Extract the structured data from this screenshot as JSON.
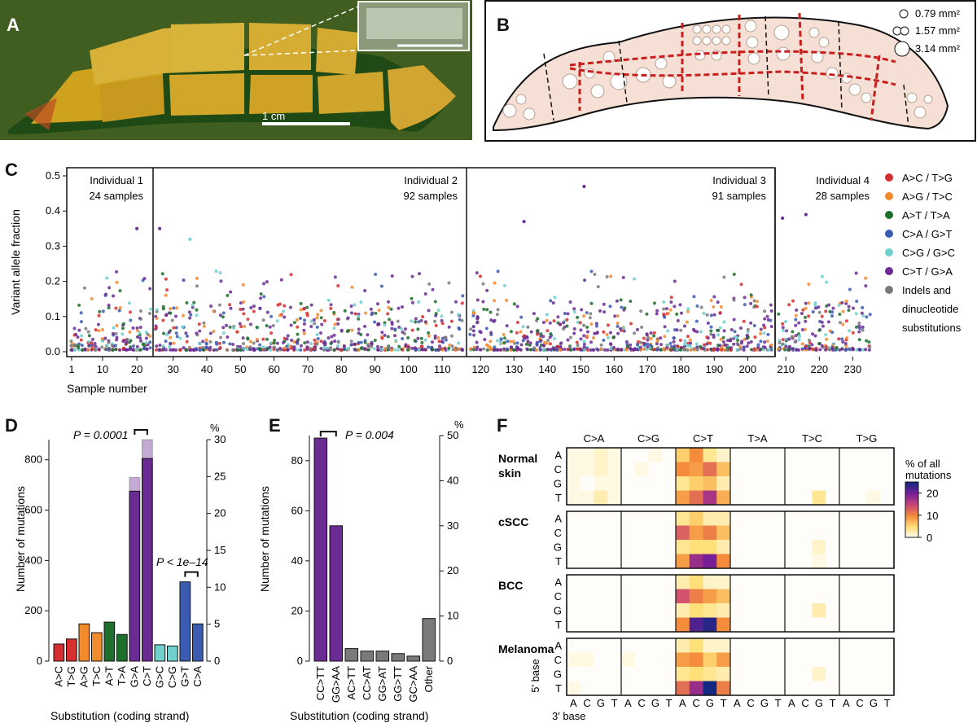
{
  "panels": {
    "A": {
      "letter": "A",
      "scale_label": "1 cm"
    },
    "B": {
      "letter": "B",
      "legend": [
        "0.79 mm²",
        "1.57 mm²",
        "3.14 mm²"
      ]
    },
    "C": {
      "letter": "C",
      "individuals": [
        {
          "name": "Individual 1",
          "samples": "24 samples",
          "start": 1,
          "end": 24
        },
        {
          "name": "Individual 2",
          "samples": "92 samples",
          "start": 25,
          "end": 116
        },
        {
          "name": "Individual 3",
          "samples": "91 samples",
          "start": 117,
          "end": 207
        },
        {
          "name": "Individual 4",
          "samples": "28 samples",
          "start": 208,
          "end": 235
        }
      ],
      "legend": [
        {
          "label": "A>C / T>G",
          "color": "#d62f2f"
        },
        {
          "label": "A>G / T>C",
          "color": "#f28a2e"
        },
        {
          "label": "A>T / T>A",
          "color": "#1e6e2e"
        },
        {
          "label": "C>A / G>T",
          "color": "#3a5bb0"
        },
        {
          "label": "C>G / G>C",
          "color": "#6fd0cc"
        },
        {
          "label": "C>T / G>A",
          "color": "#6a2b92"
        },
        {
          "label": "Indels and",
          "color": "#7a7a7a"
        },
        {
          "label": "dinucleotide",
          "color": ""
        },
        {
          "label": "substitutions",
          "color": ""
        }
      ]
    },
    "D": {
      "letter": "D",
      "p1": "P = 0.0001",
      "p2": "P < 1e–14"
    },
    "E": {
      "letter": "E",
      "p1": "P = 0.004"
    },
    "F": {
      "letter": "F",
      "columns": [
        "C>A",
        "C>G",
        "C>T",
        "T>A",
        "T>C",
        "T>G"
      ],
      "rows": [
        "Normal skin",
        "cSCC",
        "BCC",
        "Melanoma"
      ],
      "five_prime": [
        "A",
        "C",
        "G",
        "T"
      ],
      "three_prime": [
        "A",
        "C",
        "G",
        "T"
      ],
      "five_prime_label": "5' base",
      "three_prime_label": "3' base",
      "colorbar_title": [
        "% of all",
        "mutations"
      ],
      "colorbar_ticks": [
        "20",
        "10",
        "0"
      ]
    }
  },
  "chart_data": [
    {
      "type": "scatter",
      "panel": "C",
      "xlabel": "Sample number",
      "ylabel": "Variant allele fraction",
      "ylim": [
        0,
        0.5
      ],
      "yticks": [
        "0.0",
        "0.1",
        "0.2",
        "0.3",
        "0.4",
        "0.5"
      ],
      "xticks": [
        1,
        10,
        20,
        30,
        40,
        50,
        60,
        70,
        80,
        90,
        100,
        110,
        120,
        130,
        140,
        150,
        160,
        170,
        180,
        190,
        200,
        210,
        220,
        230
      ],
      "notable_points": [
        {
          "sample": 20,
          "vaf": 0.35,
          "class": "C>T / G>A"
        },
        {
          "sample": 26,
          "vaf": 0.35,
          "class": "C>T / G>A"
        },
        {
          "sample": 35,
          "vaf": 0.32,
          "class": "C>G / G>C"
        },
        {
          "sample": 133,
          "vaf": 0.37,
          "class": "C>T / G>A"
        },
        {
          "sample": 151,
          "vaf": 0.47,
          "class": "C>T / G>A"
        },
        {
          "sample": 209,
          "vaf": 0.38,
          "class": "C>T / G>A"
        },
        {
          "sample": 216,
          "vaf": 0.39,
          "class": "C>T / G>A"
        }
      ]
    },
    {
      "type": "bar",
      "panel": "D",
      "xlabel": "Substitution (coding strand)",
      "ylabel": "Number of mutations",
      "ylim": [
        0,
        880
      ],
      "yticks": [
        0,
        200,
        400,
        600,
        800
      ],
      "right_axis_label": "%",
      "right_axis_ticks": [
        0,
        5,
        10,
        15,
        20,
        25,
        30
      ],
      "categories": [
        "A>C",
        "T>G",
        "A>G",
        "T>C",
        "A>T",
        "T>A",
        "G>A",
        "C>T",
        "G>C",
        "C>G",
        "G>T",
        "C>A"
      ],
      "values": [
        68,
        88,
        148,
        113,
        155,
        106,
        730,
        880,
        65,
        60,
        315,
        148
      ],
      "lower_segment": [
        68,
        88,
        148,
        113,
        155,
        106,
        675,
        805,
        65,
        60,
        315,
        148
      ],
      "colors": [
        "#d62f2f",
        "#d62f2f",
        "#f28a2e",
        "#f28a2e",
        "#1e6e2e",
        "#1e6e2e",
        "#6a2b92",
        "#6a2b92",
        "#6fd0cc",
        "#6fd0cc",
        "#3a5bb0",
        "#3a5bb0"
      ]
    },
    {
      "type": "bar",
      "panel": "E",
      "xlabel": "Substitution (coding strand)",
      "ylabel": "Number of mutations",
      "ylim": [
        0,
        90
      ],
      "yticks": [
        0,
        20,
        40,
        60,
        80
      ],
      "right_axis_label": "%",
      "right_axis_ticks": [
        0,
        10,
        20,
        30,
        40,
        50
      ],
      "categories": [
        "CC>TT",
        "GG>AA",
        "AC>TT",
        "CC>AT",
        "GG>AT",
        "GG>TT",
        "GC>AA",
        "Other"
      ],
      "values": [
        89,
        54,
        5,
        4,
        4,
        3,
        2,
        17
      ],
      "colors": [
        "#6a2b92",
        "#6a2b92",
        "#7a7a7a",
        "#7a7a7a",
        "#7a7a7a",
        "#7a7a7a",
        "#7a7a7a",
        "#7a7a7a"
      ]
    },
    {
      "type": "heatmap",
      "panel": "F",
      "note": "Values are % of all mutations per trinucleotide context (approximate, read from colour).",
      "scale": [
        0,
        25
      ],
      "groups": {
        "Normal skin": [
          [
            1,
            1,
            2,
            1,
            0,
            0,
            1,
            0,
            6,
            10,
            4,
            2,
            0,
            0,
            0,
            0,
            0,
            0,
            0,
            0,
            0,
            0,
            0,
            0
          ],
          [
            1,
            1,
            2,
            1,
            0,
            1,
            0,
            0,
            10,
            9,
            12,
            7,
            0,
            0,
            0,
            0,
            0,
            0,
            0,
            0,
            0,
            0,
            0,
            0
          ],
          [
            1,
            0,
            1,
            1,
            0,
            0,
            0,
            0,
            4,
            6,
            7,
            3,
            0,
            0,
            0,
            0,
            0,
            0,
            0,
            0,
            0,
            0,
            0,
            0
          ],
          [
            1,
            1,
            3,
            1,
            0,
            0,
            0,
            0,
            9,
            12,
            17,
            8,
            0,
            0,
            0,
            0,
            0,
            0,
            4,
            0,
            0,
            0,
            1,
            0
          ]
        ],
        "cSCC": [
          [
            0,
            0,
            0,
            0,
            0,
            0,
            0,
            0,
            4,
            6,
            3,
            3,
            0,
            0,
            0,
            0,
            0,
            0,
            0,
            0,
            0,
            0,
            0,
            0
          ],
          [
            0,
            0,
            0,
            0,
            0,
            0,
            0,
            0,
            13,
            9,
            11,
            7,
            0,
            0,
            0,
            0,
            0,
            0,
            0,
            0,
            0,
            0,
            0,
            0
          ],
          [
            0,
            0,
            0,
            0,
            0,
            0,
            0,
            0,
            4,
            5,
            5,
            3,
            0,
            0,
            0,
            0,
            0,
            0,
            2,
            0,
            0,
            0,
            0,
            0
          ],
          [
            0,
            0,
            0,
            0,
            0,
            0,
            0,
            0,
            9,
            18,
            20,
            10,
            0,
            0,
            0,
            0,
            0,
            0,
            1,
            0,
            0,
            0,
            0,
            0
          ]
        ],
        "BCC": [
          [
            0,
            0,
            0,
            0,
            0,
            0,
            0,
            0,
            3,
            5,
            2,
            2,
            0,
            0,
            0,
            0,
            0,
            0,
            0,
            0,
            0,
            0,
            0,
            0
          ],
          [
            0,
            0,
            0,
            0,
            0,
            0,
            0,
            0,
            14,
            11,
            9,
            7,
            0,
            0,
            0,
            0,
            0,
            0,
            0,
            0,
            0,
            0,
            0,
            0
          ],
          [
            0,
            0,
            0,
            0,
            0,
            0,
            0,
            0,
            3,
            5,
            4,
            3,
            0,
            0,
            0,
            0,
            0,
            0,
            3,
            0,
            0,
            0,
            0,
            0
          ],
          [
            0,
            0,
            0,
            0,
            0,
            0,
            0,
            0,
            10,
            22,
            24,
            10,
            0,
            0,
            0,
            0,
            0,
            0,
            0,
            0,
            0,
            0,
            0,
            0
          ]
        ],
        "Melanoma": [
          [
            0,
            0,
            0,
            0,
            0,
            0,
            0,
            0,
            3,
            5,
            2,
            2,
            0,
            0,
            0,
            0,
            0,
            0,
            0,
            0,
            0,
            0,
            0,
            0
          ],
          [
            1,
            1,
            0,
            0,
            1,
            0,
            0,
            0,
            9,
            10,
            6,
            9,
            0,
            0,
            0,
            0,
            0,
            0,
            0,
            0,
            0,
            0,
            0,
            0
          ],
          [
            0,
            0,
            0,
            0,
            0,
            0,
            0,
            0,
            4,
            5,
            4,
            3,
            0,
            0,
            0,
            0,
            0,
            0,
            2,
            0,
            0,
            0,
            0,
            0
          ],
          [
            1,
            0,
            0,
            0,
            0,
            0,
            0,
            0,
            12,
            18,
            25,
            11,
            0,
            0,
            0,
            0,
            0,
            0,
            0,
            0,
            0,
            0,
            0,
            0
          ]
        ]
      }
    }
  ]
}
